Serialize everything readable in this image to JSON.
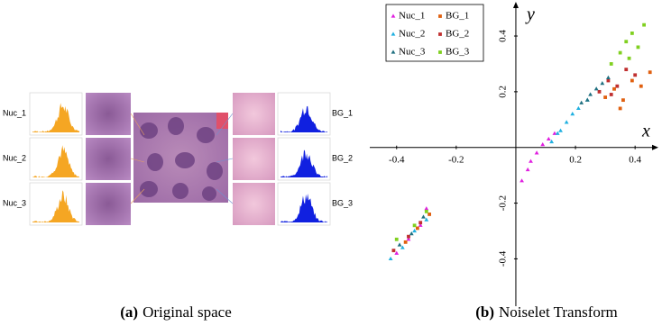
{
  "left_panel": {
    "nuc_labels": [
      "Nuc_1",
      "Nuc_2",
      "Nuc_3"
    ],
    "bg_labels": [
      "BG_1",
      "BG_2",
      "BG_3"
    ]
  },
  "captions": [
    {
      "label": "(a)",
      "text": "Original space"
    },
    {
      "label": "(b)",
      "text": "Noiselet Transform"
    }
  ],
  "chart_data": {
    "type": "scatter",
    "xlabel": "x",
    "ylabel": "y",
    "xlim": [
      -0.49,
      0.46
    ],
    "ylim": [
      -0.57,
      0.51
    ],
    "xticks": [
      -0.4,
      -0.2,
      0.2,
      0.4
    ],
    "yticks": [
      -0.4,
      -0.2,
      0.2,
      0.4
    ],
    "series": [
      {
        "name": "Nuc_1",
        "color": "#e020e0",
        "marker": "triangle",
        "x": [
          0.02,
          0.05,
          0.07,
          0.09,
          0.11,
          0.13,
          0.04,
          -0.36,
          -0.32,
          -0.4,
          -0.3
        ],
        "y": [
          -0.12,
          -0.05,
          -0.02,
          0.01,
          0.03,
          0.05,
          -0.08,
          -0.33,
          -0.28,
          -0.38,
          -0.22
        ]
      },
      {
        "name": "BG_1",
        "color": "#e06010",
        "marker": "square",
        "x": [
          0.3,
          0.33,
          0.36,
          0.39,
          0.42,
          0.45,
          0.35,
          -0.33,
          -0.37,
          -0.29
        ],
        "y": [
          0.18,
          0.21,
          0.17,
          0.24,
          0.22,
          0.27,
          0.14,
          -0.29,
          -0.34,
          -0.24
        ]
      },
      {
        "name": "Nuc_2",
        "color": "#20b0e0",
        "marker": "triangle",
        "x": [
          0.12,
          0.15,
          0.17,
          0.19,
          0.21,
          0.24,
          0.14,
          -0.34,
          -0.38,
          -0.3,
          -0.42
        ],
        "y": [
          0.02,
          0.06,
          0.09,
          0.12,
          0.14,
          0.17,
          0.05,
          -0.3,
          -0.36,
          -0.26,
          -0.4
        ]
      },
      {
        "name": "BG_2",
        "color": "#c03030",
        "marker": "square",
        "x": [
          0.28,
          0.31,
          0.34,
          0.37,
          0.4,
          0.32,
          -0.36,
          -0.32,
          -0.41
        ],
        "y": [
          0.2,
          0.24,
          0.22,
          0.28,
          0.26,
          0.19,
          -0.32,
          -0.27,
          -0.37
        ]
      },
      {
        "name": "Nuc_3",
        "color": "#207080",
        "marker": "triangle",
        "x": [
          0.22,
          0.25,
          0.27,
          0.29,
          0.31,
          0.24,
          -0.35,
          -0.31,
          -0.39
        ],
        "y": [
          0.16,
          0.19,
          0.21,
          0.23,
          0.25,
          0.17,
          -0.31,
          -0.25,
          -0.35
        ]
      },
      {
        "name": "BG_3",
        "color": "#80d020",
        "marker": "square",
        "x": [
          0.32,
          0.35,
          0.37,
          0.39,
          0.41,
          0.43,
          0.38,
          -0.34,
          -0.3,
          -0.4
        ],
        "y": [
          0.3,
          0.34,
          0.38,
          0.41,
          0.36,
          0.44,
          0.32,
          -0.28,
          -0.23,
          -0.33
        ]
      }
    ]
  }
}
